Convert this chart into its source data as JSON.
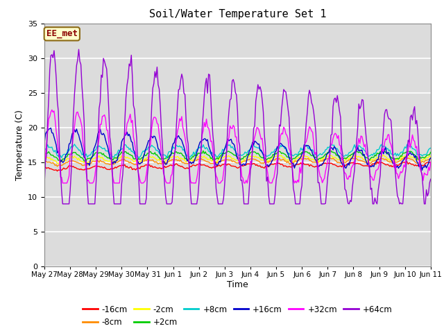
{
  "title": "Soil/Water Temperature Set 1",
  "xlabel": "Time",
  "ylabel": "Temperature (C)",
  "ylim": [
    0,
    35
  ],
  "yticks": [
    0,
    5,
    10,
    15,
    20,
    25,
    30,
    35
  ],
  "annotation_text": "EE_met",
  "annotation_color": "#8B0000",
  "annotation_bg": "#FFFFCC",
  "fig_bg": "#FFFFFF",
  "plot_bg": "#DCDCDC",
  "grid_color": "#FFFFFF",
  "tick_labels": [
    "May 27",
    "May 28",
    "May 29",
    "May 30",
    "May 31",
    "Jun 1",
    "Jun 2",
    "Jun 3",
    "Jun 4",
    "Jun 5",
    "Jun 6",
    "Jun 7",
    "Jun 8",
    "Jun 9",
    "Jun 10",
    "Jun 11"
  ],
  "series_order": [
    "-16cm",
    "-8cm",
    "-2cm",
    "+2cm",
    "+8cm",
    "+16cm",
    "+32cm",
    "+64cm"
  ],
  "series_colors": [
    "#FF0000",
    "#FF8C00",
    "#FFFF00",
    "#00CC00",
    "#00CCCC",
    "#0000CC",
    "#FF00FF",
    "#9400D3"
  ]
}
